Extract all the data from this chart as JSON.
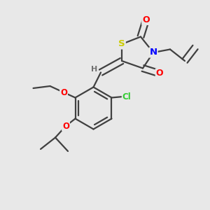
{
  "bg_color": "#e8e8e8",
  "bond_color": "#404040",
  "atom_colors": {
    "S": "#cccc00",
    "N": "#0000ff",
    "O": "#ff0000",
    "Cl": "#33cc33",
    "H": "#707070",
    "C": "#404040"
  },
  "line_width": 1.6,
  "figsize": [
    3.0,
    3.0
  ],
  "dpi": 100,
  "xlim": [
    0,
    10
  ],
  "ylim": [
    0,
    10
  ]
}
